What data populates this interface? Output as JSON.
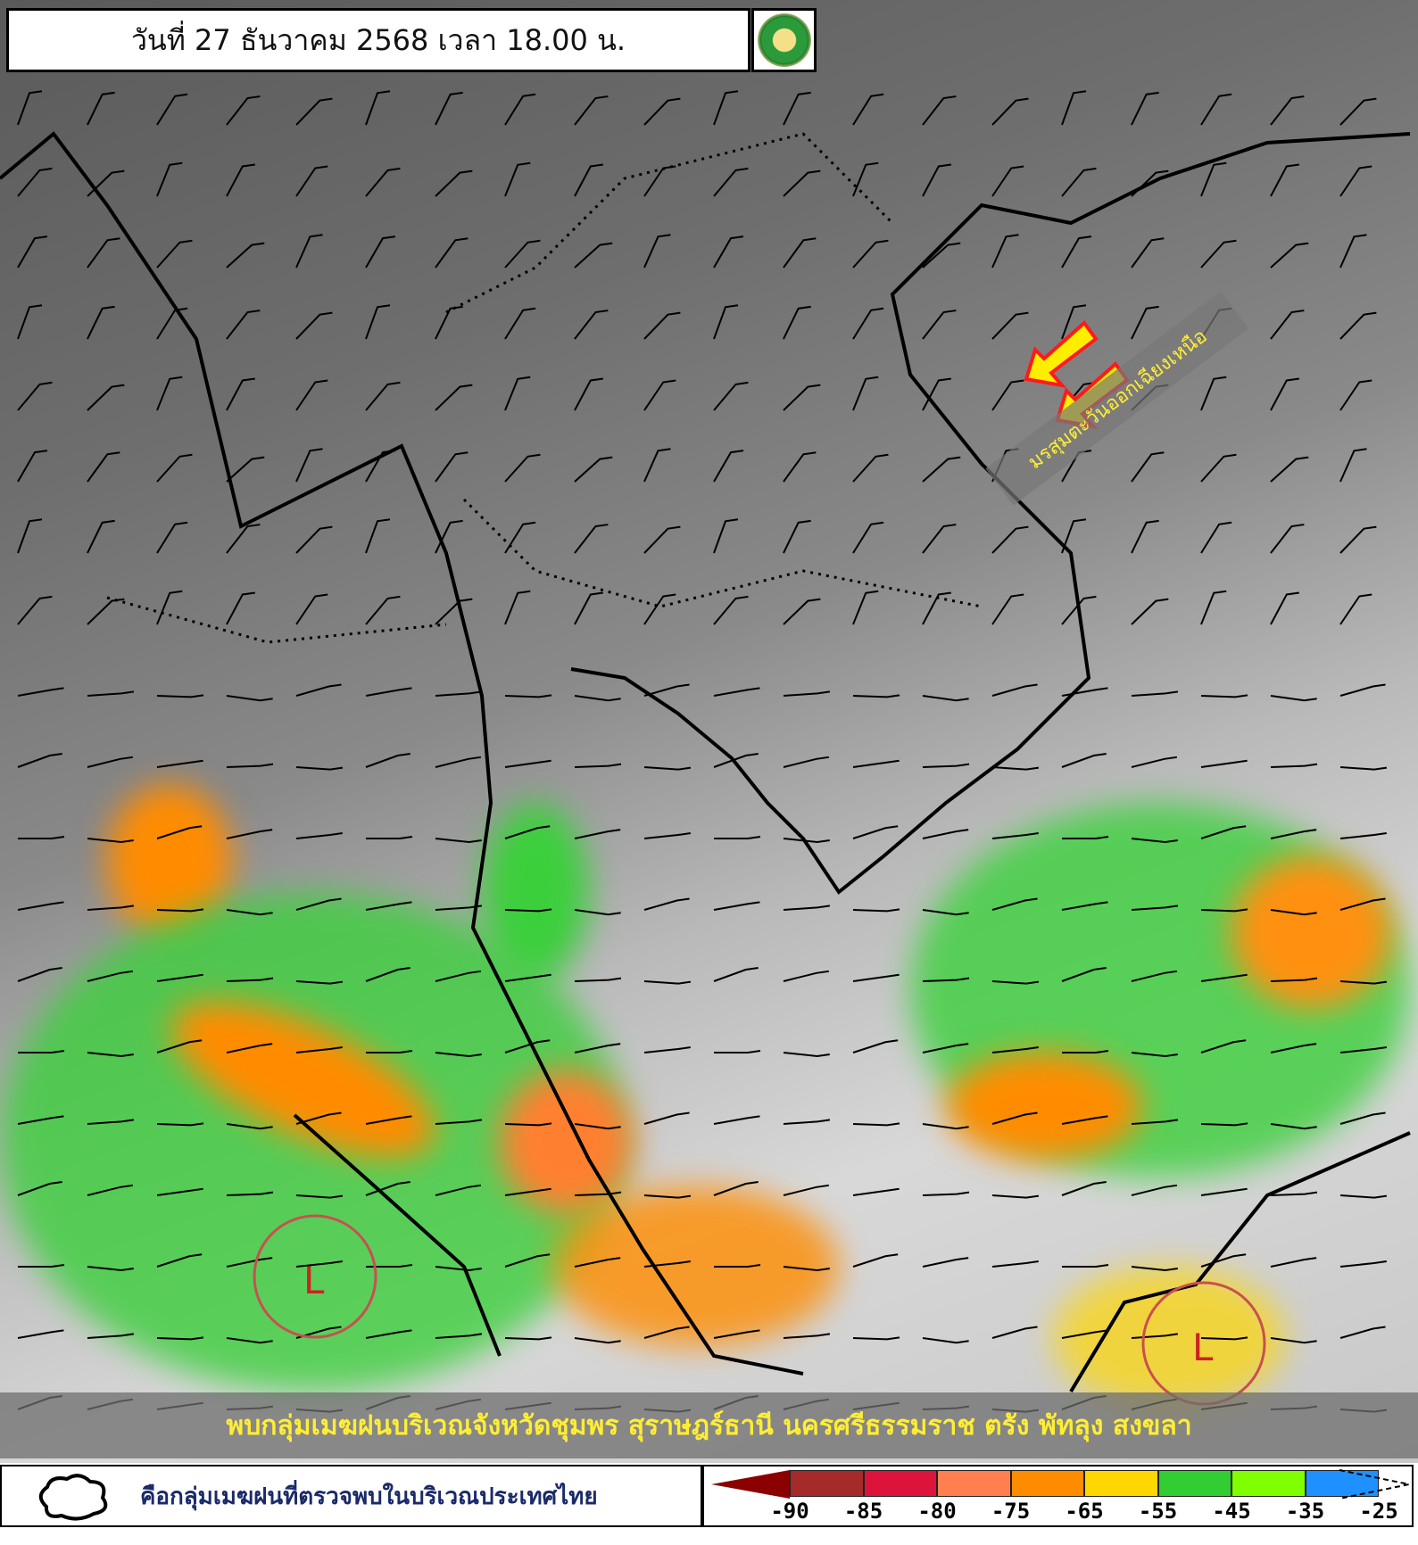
{
  "header": {
    "title": "วันที่ 27 ธันวาคม 2568 เวลา 18.00 น.",
    "logo_icon": "tmd-logo-icon"
  },
  "annotations": {
    "monsoon_label": "มรสุมตะวันออกเฉียงเหนือ",
    "low_pressure_label": "L",
    "arrow_color": "#ffee00",
    "arrow_outline": "#ff1a1a"
  },
  "banner": {
    "text": "พบกลุ่มเมฆฝนบริเวณจังหวัดชุมพร สุราษฎร์ธานี นครศรีธรรมราช ตรัง พัทลุง สงขลา"
  },
  "legend": {
    "cloud_icon": "cloud-outline-icon",
    "cloud_text": "คือกลุ่มเมฆฝนที่ตรวจพบในบริเวณประเทศไทย",
    "colors": [
      "#8b0000",
      "#a52a2a",
      "#dc143c",
      "#ff7f50",
      "#ff8c00",
      "#ffd700",
      "#32cd32",
      "#7fff00",
      "#1e90ff"
    ],
    "ticks": [
      "-90",
      "-85",
      "-80",
      "-75",
      "-65",
      "-55",
      "-45",
      "-35",
      "-25"
    ]
  }
}
